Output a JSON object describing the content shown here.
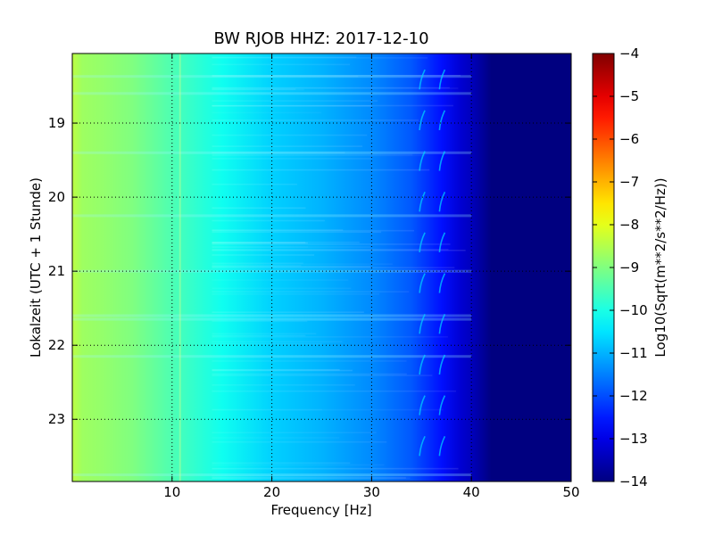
{
  "chart_data": {
    "type": "heatmap",
    "title": "BW RJOB HHZ: 2017-12-10",
    "xlabel": "Frequency [Hz]",
    "ylabel": "Lokalzeit (UTC + 1 Stunde)",
    "xlim": [
      0,
      50
    ],
    "ylim": [
      18.06,
      23.84
    ],
    "y_inverted": true,
    "grid": true,
    "x_ticks": [
      10,
      20,
      30,
      40,
      50
    ],
    "y_ticks": [
      19,
      20,
      21,
      22,
      23
    ],
    "colormap": "jet",
    "colorbar": {
      "label": "Log10(Sqrt(m**2/s**2/Hz))",
      "range": [
        -14,
        -4
      ],
      "ticks": [
        -14,
        -13,
        -12,
        -11,
        -10,
        -9,
        -8,
        -7,
        -6,
        -5,
        -4
      ]
    },
    "spectrum_profile": {
      "frequency_hz": [
        0,
        1,
        3,
        6,
        10,
        15,
        20,
        25,
        30,
        34,
        37,
        39,
        40,
        41,
        42,
        50
      ],
      "log10_amplitude": [
        -8.4,
        -8.7,
        -8.8,
        -9.0,
        -9.5,
        -10.1,
        -10.7,
        -11.0,
        -11.4,
        -11.9,
        -12.6,
        -13.2,
        -13.4,
        -13.7,
        -14.0,
        -14.0
      ]
    },
    "line_features": [
      {
        "frequency_hz": 10.8,
        "note": "narrow band"
      },
      {
        "frequency_hz": 34.8,
        "note": "recurring gliding tone"
      },
      {
        "frequency_hz": 36.8,
        "note": "recurring gliding tone"
      }
    ],
    "bright_rows_hour": [
      18.37,
      18.6,
      19.4,
      20.25,
      21.0,
      21.6,
      21.65,
      22.15,
      23.75
    ]
  }
}
